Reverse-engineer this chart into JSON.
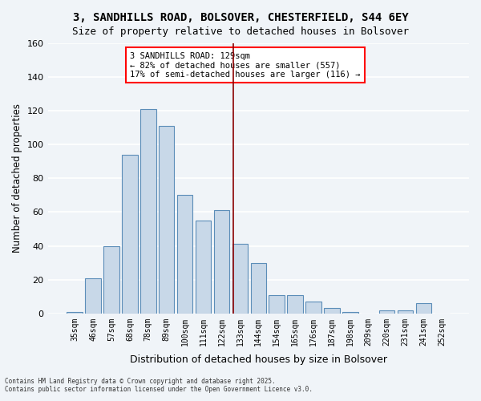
{
  "title": "3, SANDHILLS ROAD, BOLSOVER, CHESTERFIELD, S44 6EY",
  "subtitle": "Size of property relative to detached houses in Bolsover",
  "xlabel": "Distribution of detached houses by size in Bolsover",
  "ylabel": "Number of detached properties",
  "bar_color": "#c8d8e8",
  "bar_edge_color": "#5b8db8",
  "background_color": "#f0f4f8",
  "grid_color": "white",
  "categories": [
    "35sqm",
    "46sqm",
    "57sqm",
    "68sqm",
    "78sqm",
    "89sqm",
    "100sqm",
    "111sqm",
    "122sqm",
    "133sqm",
    "144sqm",
    "154sqm",
    "165sqm",
    "176sqm",
    "187sqm",
    "198sqm",
    "209sqm",
    "220sqm",
    "231sqm",
    "241sqm",
    "252sqm"
  ],
  "values": [
    1,
    21,
    40,
    94,
    121,
    111,
    70,
    55,
    61,
    41,
    30,
    11,
    11,
    7,
    3,
    1,
    0,
    2,
    2,
    6,
    0
  ],
  "ylim": [
    0,
    160
  ],
  "yticks": [
    0,
    20,
    40,
    60,
    80,
    100,
    120,
    140,
    160
  ],
  "property_value": 129,
  "property_label": "3 SANDHILLS ROAD: 129sqm",
  "annotation_left": "← 82% of detached houses are smaller (557)",
  "annotation_right": "17% of semi-detached houses are larger (116) →",
  "vline_color": "#8b0000",
  "annotation_box_color": "#ffeeee",
  "annotation_border_color": "red",
  "footer1": "Contains HM Land Registry data © Crown copyright and database right 2025.",
  "footer2": "Contains public sector information licensed under the Open Government Licence v3.0."
}
